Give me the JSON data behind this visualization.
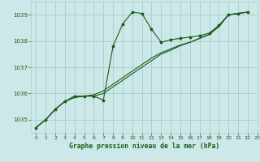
{
  "title": "Graphe pression niveau de la mer (hPa)",
  "bg_color": "#cce8e8",
  "grid_color": "#aacccc",
  "line_color": "#1a5c1a",
  "xlim": [
    -0.5,
    23
  ],
  "ylim": [
    1034.5,
    1039.5
  ],
  "yticks": [
    1035,
    1036,
    1037,
    1038,
    1039
  ],
  "xticks": [
    0,
    1,
    2,
    3,
    4,
    5,
    6,
    7,
    8,
    9,
    10,
    11,
    12,
    13,
    14,
    15,
    16,
    17,
    18,
    19,
    20,
    21,
    22,
    23
  ],
  "series1": [
    [
      0,
      1034.7
    ],
    [
      1,
      1035.0
    ],
    [
      2,
      1035.4
    ],
    [
      3,
      1035.7
    ],
    [
      4,
      1035.9
    ],
    [
      5,
      1035.9
    ],
    [
      6,
      1035.9
    ],
    [
      7,
      1035.75
    ],
    [
      8,
      1037.8
    ],
    [
      9,
      1038.65
    ],
    [
      10,
      1039.1
    ],
    [
      11,
      1039.05
    ],
    [
      12,
      1038.45
    ],
    [
      13,
      1037.95
    ],
    [
      14,
      1038.05
    ],
    [
      15,
      1038.1
    ],
    [
      16,
      1038.15
    ],
    [
      17,
      1038.2
    ],
    [
      18,
      1038.3
    ],
    [
      19,
      1038.6
    ],
    [
      20,
      1039.0
    ],
    [
      21,
      1039.05
    ],
    [
      22,
      1039.1
    ]
  ],
  "series2": [
    [
      0,
      1034.7
    ],
    [
      1,
      1035.0
    ],
    [
      2,
      1035.4
    ],
    [
      3,
      1035.7
    ],
    [
      4,
      1035.85
    ],
    [
      5,
      1035.9
    ],
    [
      6,
      1035.95
    ],
    [
      7,
      1036.1
    ],
    [
      8,
      1036.35
    ],
    [
      9,
      1036.6
    ],
    [
      10,
      1036.85
    ],
    [
      11,
      1037.1
    ],
    [
      12,
      1037.35
    ],
    [
      13,
      1037.55
    ],
    [
      14,
      1037.7
    ],
    [
      15,
      1037.85
    ],
    [
      16,
      1037.95
    ],
    [
      17,
      1038.1
    ],
    [
      18,
      1038.25
    ],
    [
      19,
      1038.55
    ],
    [
      20,
      1039.0
    ],
    [
      21,
      1039.05
    ],
    [
      22,
      1039.1
    ]
  ],
  "series3": [
    [
      0,
      1034.7
    ],
    [
      1,
      1035.0
    ],
    [
      2,
      1035.4
    ],
    [
      3,
      1035.7
    ],
    [
      4,
      1035.85
    ],
    [
      5,
      1035.9
    ],
    [
      6,
      1035.9
    ],
    [
      7,
      1036.0
    ],
    [
      8,
      1036.25
    ],
    [
      9,
      1036.5
    ],
    [
      10,
      1036.75
    ],
    [
      11,
      1037.0
    ],
    [
      12,
      1037.25
    ],
    [
      13,
      1037.5
    ],
    [
      14,
      1037.65
    ],
    [
      15,
      1037.82
    ],
    [
      16,
      1037.95
    ],
    [
      17,
      1038.1
    ],
    [
      18,
      1038.25
    ],
    [
      19,
      1038.55
    ],
    [
      20,
      1039.0
    ],
    [
      21,
      1039.05
    ],
    [
      22,
      1039.1
    ]
  ]
}
